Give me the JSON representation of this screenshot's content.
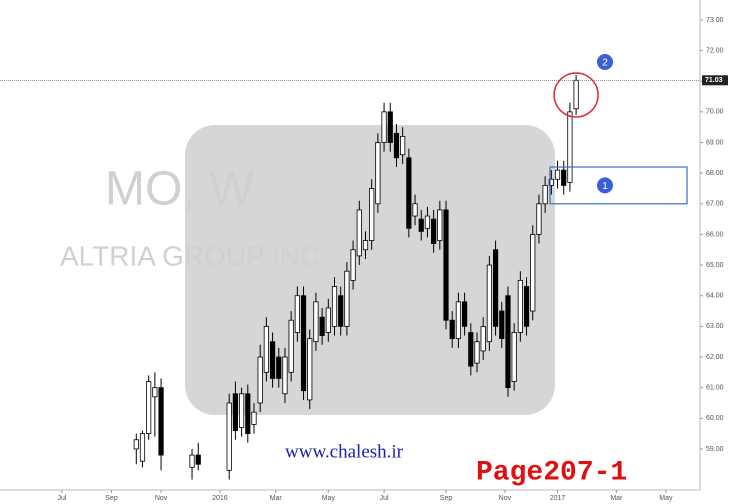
{
  "chart_data": {
    "type": "candlestick",
    "watermark_symbol": "MO, W",
    "watermark_name": "ALTRIA GROUP INC",
    "site": "www.chalesh.ir",
    "page": "Page207-1",
    "annotations": [
      "1",
      "2"
    ],
    "zone": [
      67.0,
      68.2
    ],
    "hline": {
      "value": 71.03,
      "label": "71.03"
    },
    "up_color": "#ffffff",
    "down_color": "#000000",
    "x": [
      22,
      23,
      24,
      25,
      26,
      31,
      32,
      37,
      38,
      39,
      40,
      41,
      42,
      43,
      44,
      45,
      46,
      47,
      48,
      49,
      50,
      51,
      52,
      53,
      54,
      55,
      56,
      57,
      58,
      59,
      60,
      61,
      62,
      63,
      64,
      65,
      66,
      67,
      68,
      69,
      70,
      71,
      72,
      73,
      74,
      75,
      76,
      77,
      78,
      79,
      80,
      81,
      82,
      83,
      84,
      85,
      86,
      87,
      88,
      89,
      90,
      91,
      92,
      93
    ],
    "open": [
      59.0,
      58.6,
      59.5,
      60.7,
      61.0,
      58.4,
      58.8,
      58.3,
      60.8,
      59.7,
      60.8,
      59.8,
      60.5,
      61.5,
      62.5,
      62.0,
      60.8,
      61.5,
      62.8,
      64.0,
      60.6,
      62.5,
      63.3,
      62.8,
      63.0,
      64.0,
      63.0,
      64.5,
      65.3,
      65.5,
      65.8,
      67.0,
      69.0,
      70.0,
      69.3,
      68.6,
      68.5,
      66.6,
      66.5,
      66.2,
      66.5,
      65.8,
      66.8,
      63.2,
      62.6,
      63.8,
      62.8,
      61.8,
      62.2,
      62.5,
      65.5,
      63.5,
      64.0,
      61.2,
      62.8,
      64.3,
      63.5,
      66.0,
      67.0,
      67.6,
      67.8,
      68.1,
      67.7,
      70.1
    ],
    "high": [
      59.5,
      59.6,
      61.4,
      61.5,
      61.3,
      59.0,
      59.2,
      60.8,
      61.2,
      61.0,
      61.1,
      60.5,
      62.4,
      63.3,
      62.8,
      62.3,
      62.3,
      63.5,
      64.3,
      64.3,
      62.9,
      64.1,
      63.6,
      63.9,
      64.6,
      64.3,
      65.1,
      65.8,
      67.1,
      66.1,
      67.8,
      69.3,
      70.3,
      70.3,
      69.6,
      69.5,
      68.8,
      67.3,
      66.8,
      66.9,
      66.8,
      67.1,
      67.1,
      63.5,
      64.1,
      64.1,
      63.1,
      62.8,
      63.3,
      65.3,
      65.8,
      63.8,
      64.3,
      63.1,
      64.8,
      64.6,
      66.3,
      67.3,
      67.9,
      68.1,
      68.4,
      68.4,
      70.3,
      71.2
    ],
    "low": [
      58.5,
      58.4,
      59.3,
      59.4,
      58.3,
      58.0,
      58.3,
      58.0,
      59.3,
      59.4,
      59.2,
      59.5,
      60.2,
      61.2,
      61.0,
      61.0,
      60.5,
      61.2,
      62.5,
      60.6,
      60.3,
      62.2,
      62.4,
      62.5,
      62.7,
      62.7,
      62.7,
      64.2,
      65.0,
      65.2,
      65.5,
      66.7,
      68.7,
      68.7,
      68.2,
      68.3,
      65.9,
      66.3,
      65.8,
      65.9,
      65.4,
      65.5,
      62.9,
      62.3,
      62.3,
      62.7,
      61.4,
      61.5,
      61.9,
      62.2,
      62.7,
      62.3,
      60.7,
      60.9,
      62.5,
      62.7,
      63.2,
      65.7,
      66.7,
      67.3,
      67.5,
      67.3,
      67.4,
      69.9
    ],
    "close": [
      59.3,
      59.5,
      61.2,
      61.0,
      58.8,
      58.8,
      58.5,
      60.5,
      59.6,
      60.8,
      59.5,
      60.2,
      62.0,
      63.0,
      61.3,
      61.3,
      62.0,
      63.2,
      64.0,
      60.9,
      62.6,
      63.8,
      62.7,
      63.6,
      64.3,
      63.0,
      64.8,
      65.5,
      66.8,
      65.8,
      67.5,
      69.0,
      70.0,
      69.0,
      68.5,
      69.2,
      66.2,
      67.0,
      66.1,
      66.6,
      65.7,
      66.8,
      63.2,
      62.6,
      63.8,
      63.0,
      61.7,
      62.5,
      63.0,
      65.0,
      63.0,
      62.6,
      61.0,
      62.8,
      64.5,
      63.0,
      66.0,
      67.0,
      67.6,
      67.8,
      68.1,
      67.6,
      70.0,
      71.03
    ],
    "xlim": [
      0,
      113
    ],
    "xticks": [
      {
        "value": 10,
        "label": "Jul"
      },
      {
        "value": 18,
        "label": "Sep"
      },
      {
        "value": 26,
        "label": "Nov"
      },
      {
        "value": 35.5,
        "label": "2016"
      },
      {
        "value": 44.5,
        "label": "Mar"
      },
      {
        "value": 53,
        "label": "May"
      },
      {
        "value": 62,
        "label": "Jul"
      },
      {
        "value": 72,
        "label": "Sep"
      },
      {
        "value": 81.5,
        "label": "Nov"
      },
      {
        "value": 90,
        "label": "2017"
      },
      {
        "value": 99.5,
        "label": "Mar"
      },
      {
        "value": 107.5,
        "label": "May"
      }
    ],
    "ylim": [
      57.66,
      73.65
    ],
    "yticks": [
      {
        "value": 59,
        "label": "59.00"
      },
      {
        "value": 60,
        "label": "60.00"
      },
      {
        "value": 61,
        "label": "61.00"
      },
      {
        "value": 62,
        "label": "62.00"
      },
      {
        "value": 63,
        "label": "63.00"
      },
      {
        "value": 64,
        "label": "64.00"
      },
      {
        "value": 65,
        "label": "65.00"
      },
      {
        "value": 66,
        "label": "66.00"
      },
      {
        "value": 67,
        "label": "67.00"
      },
      {
        "value": 68,
        "label": "68.00"
      },
      {
        "value": 69,
        "label": "69.00"
      },
      {
        "value": 70,
        "label": "70.00"
      },
      {
        "value": 71,
        "label": "71.00"
      },
      {
        "value": 72,
        "label": "72.00"
      },
      {
        "value": 73,
        "label": "73.00"
      }
    ]
  }
}
